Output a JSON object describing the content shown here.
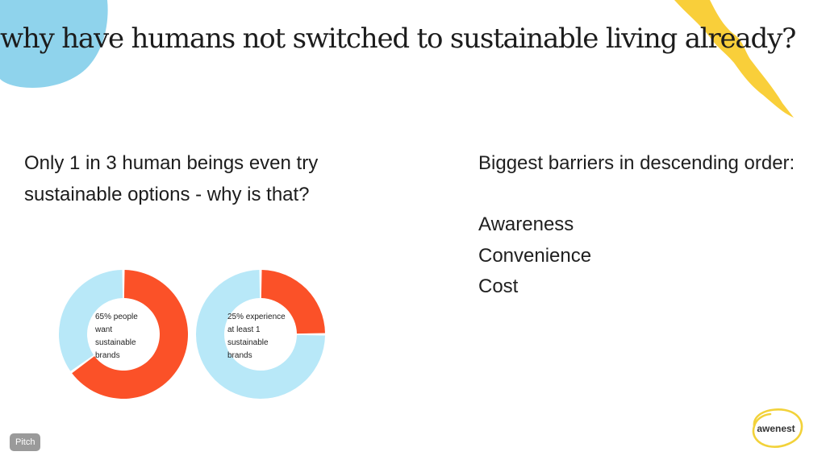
{
  "slide": {
    "title": "why have humans not switched to sustainable living already?",
    "question": "Only 1 in 3 human beings even try sustainable options - why is that?",
    "barriers": {
      "heading": "Biggest barriers in descending order:",
      "items": [
        "Awareness",
        "Convenience",
        "Cost"
      ]
    },
    "pitch_badge": "Pitch",
    "logo_text": "awenest"
  },
  "colors": {
    "accent_orange": "#fb5128",
    "light_blue": "#b8e8f8",
    "blob_blue": "#8fd3ec",
    "blob_yellow": "#f9cf3a"
  },
  "chart_data": [
    {
      "type": "pie",
      "variant": "donut",
      "label": "65% people want sustainable brands",
      "slices": [
        {
          "value": 65,
          "color": "#fb5128"
        },
        {
          "value": 35,
          "color": "#b8e8f8"
        }
      ]
    },
    {
      "type": "pie",
      "variant": "donut",
      "label": "25% experience at least 1 sustainable brands",
      "slices": [
        {
          "value": 25,
          "color": "#fb5128"
        },
        {
          "value": 75,
          "color": "#b8e8f8"
        }
      ]
    }
  ]
}
